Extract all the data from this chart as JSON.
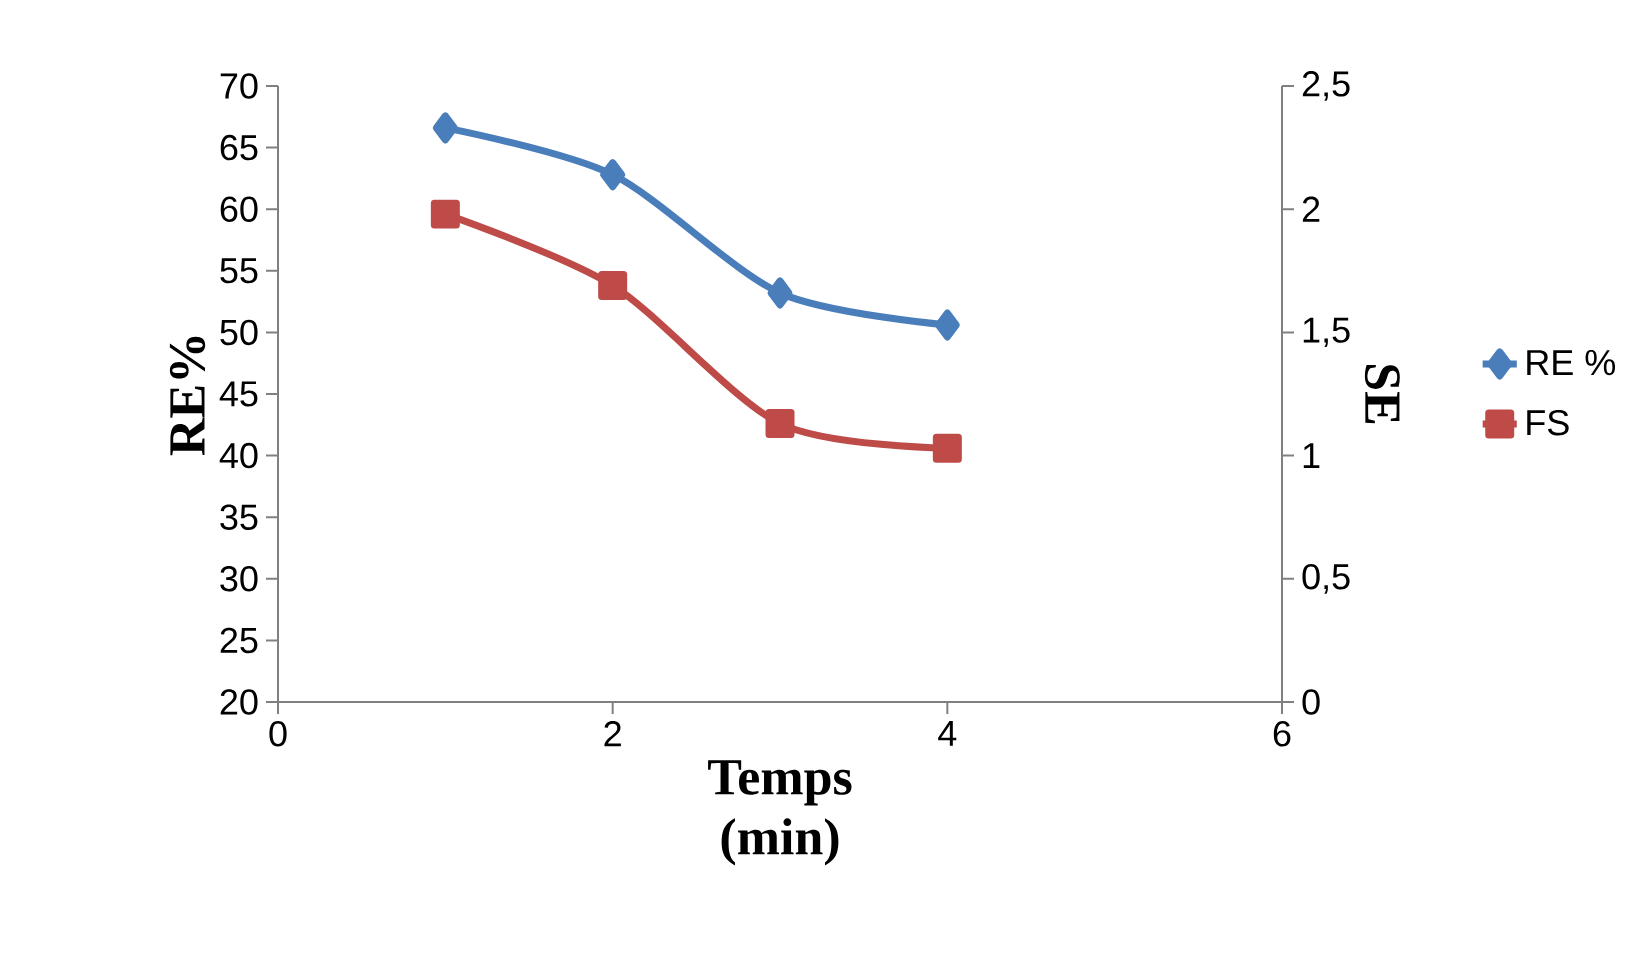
{
  "chart_data": {
    "type": "line",
    "xlabel": "Temps (min)",
    "ylabel": "RE%",
    "y2label": "SE",
    "x": [
      1,
      2,
      3,
      4
    ],
    "series": [
      {
        "name": "RE %",
        "color": "#4a7ebb",
        "marker": "diamond",
        "values": [
          66.6,
          62.8,
          53.2,
          50.6
        ]
      },
      {
        "name": "FS",
        "color": "#be4b48",
        "marker": "square",
        "axis": "y2",
        "values": [
          1.98,
          1.69,
          1.13,
          1.03
        ]
      }
    ],
    "xlim": [
      0,
      6
    ],
    "xticks": [
      0,
      2,
      4,
      6
    ],
    "ylim": [
      20,
      70
    ],
    "yticks": [
      20,
      25,
      30,
      35,
      40,
      45,
      50,
      55,
      60,
      65,
      70
    ],
    "y2lim": [
      0,
      2.5
    ],
    "y2ticks": [
      0,
      {
        "value": 0.5,
        "label": "0,5"
      },
      1,
      {
        "value": 1.5,
        "label": "1,5"
      },
      2,
      {
        "value": 2.5,
        "label": "2,5"
      }
    ],
    "legend": "right"
  }
}
